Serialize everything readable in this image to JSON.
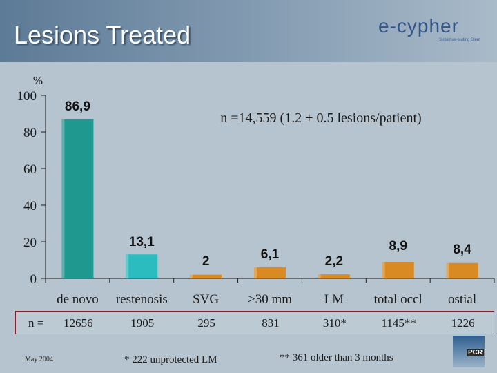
{
  "header": {
    "title": "Lesions Treated",
    "logo_text": "e-cypher",
    "logo_tagline": "Sirolimus-eluting Stent"
  },
  "chart_data": {
    "type": "bar",
    "title": "",
    "annotation": "n =14,559  (1.2 + 0.5 lesions/patient)",
    "ylabel": "%",
    "xlabel": "",
    "ylim": [
      0,
      100
    ],
    "yticks": [
      0,
      20,
      40,
      60,
      80,
      100
    ],
    "grid": false,
    "legend": "none",
    "categories": [
      "de novo",
      "restenosis",
      "SVG",
      ">30 mm",
      "LM",
      "total occl",
      "ostial"
    ],
    "values": [
      86.9,
      13.1,
      2,
      6.1,
      2.2,
      8.9,
      8.4
    ],
    "value_labels": [
      "86,9",
      "13,1",
      "2",
      "6,1",
      "2,2",
      "8,9",
      "8,4"
    ],
    "bar_colors": [
      "#1f9990",
      "#2bbcc0",
      "#d98a22",
      "#d98a22",
      "#d98a22",
      "#d98a22",
      "#d98a22"
    ]
  },
  "n_row": {
    "label": "n =",
    "values": [
      "12656",
      "1905",
      "295",
      "831",
      "310*",
      "1145**",
      "1226"
    ]
  },
  "footer": {
    "date": "May 2004",
    "footnote1": "* 222 unprotected LM",
    "footnote2": "** 361 older than 3 months",
    "badge": "PCR"
  }
}
